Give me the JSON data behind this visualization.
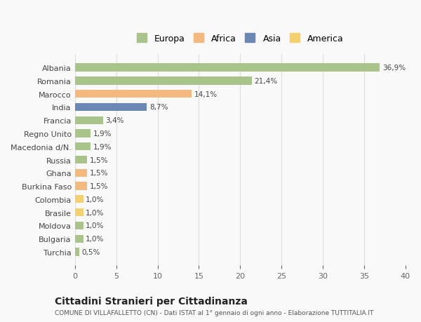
{
  "categories": [
    "Albania",
    "Romania",
    "Marocco",
    "India",
    "Francia",
    "Regno Unito",
    "Macedonia d/N.",
    "Russia",
    "Ghana",
    "Burkina Faso",
    "Colombia",
    "Brasile",
    "Moldova",
    "Bulgaria",
    "Turchia"
  ],
  "values": [
    36.9,
    21.4,
    14.1,
    8.7,
    3.4,
    1.9,
    1.9,
    1.5,
    1.5,
    1.5,
    1.0,
    1.0,
    1.0,
    1.0,
    0.5
  ],
  "labels": [
    "36,9%",
    "21,4%",
    "14,1%",
    "8,7%",
    "3,4%",
    "1,9%",
    "1,9%",
    "1,5%",
    "1,5%",
    "1,5%",
    "1,0%",
    "1,0%",
    "1,0%",
    "1,0%",
    "0,5%"
  ],
  "colors": [
    "#a8c48a",
    "#a8c48a",
    "#f4b97f",
    "#6b88b5",
    "#a8c48a",
    "#a8c48a",
    "#a8c48a",
    "#a8c48a",
    "#f4b97f",
    "#f4b97f",
    "#f5d06e",
    "#f5d06e",
    "#a8c48a",
    "#a8c48a",
    "#a8c48a"
  ],
  "legend_labels": [
    "Europa",
    "Africa",
    "Asia",
    "America"
  ],
  "legend_colors": [
    "#a8c48a",
    "#f4b97f",
    "#6b88b5",
    "#f5d06e"
  ],
  "xlim": [
    0,
    40
  ],
  "xticks": [
    0,
    5,
    10,
    15,
    20,
    25,
    30,
    35,
    40
  ],
  "title": "Cittadini Stranieri per Cittadinanza",
  "subtitle": "COMUNE DI VILLAFALLETTO (CN) - Dati ISTAT al 1° gennaio di ogni anno - Elaborazione TUTTITALIA.IT",
  "bg_color": "#f9f9f9",
  "grid_color": "#dddddd",
  "bar_height": 0.6
}
